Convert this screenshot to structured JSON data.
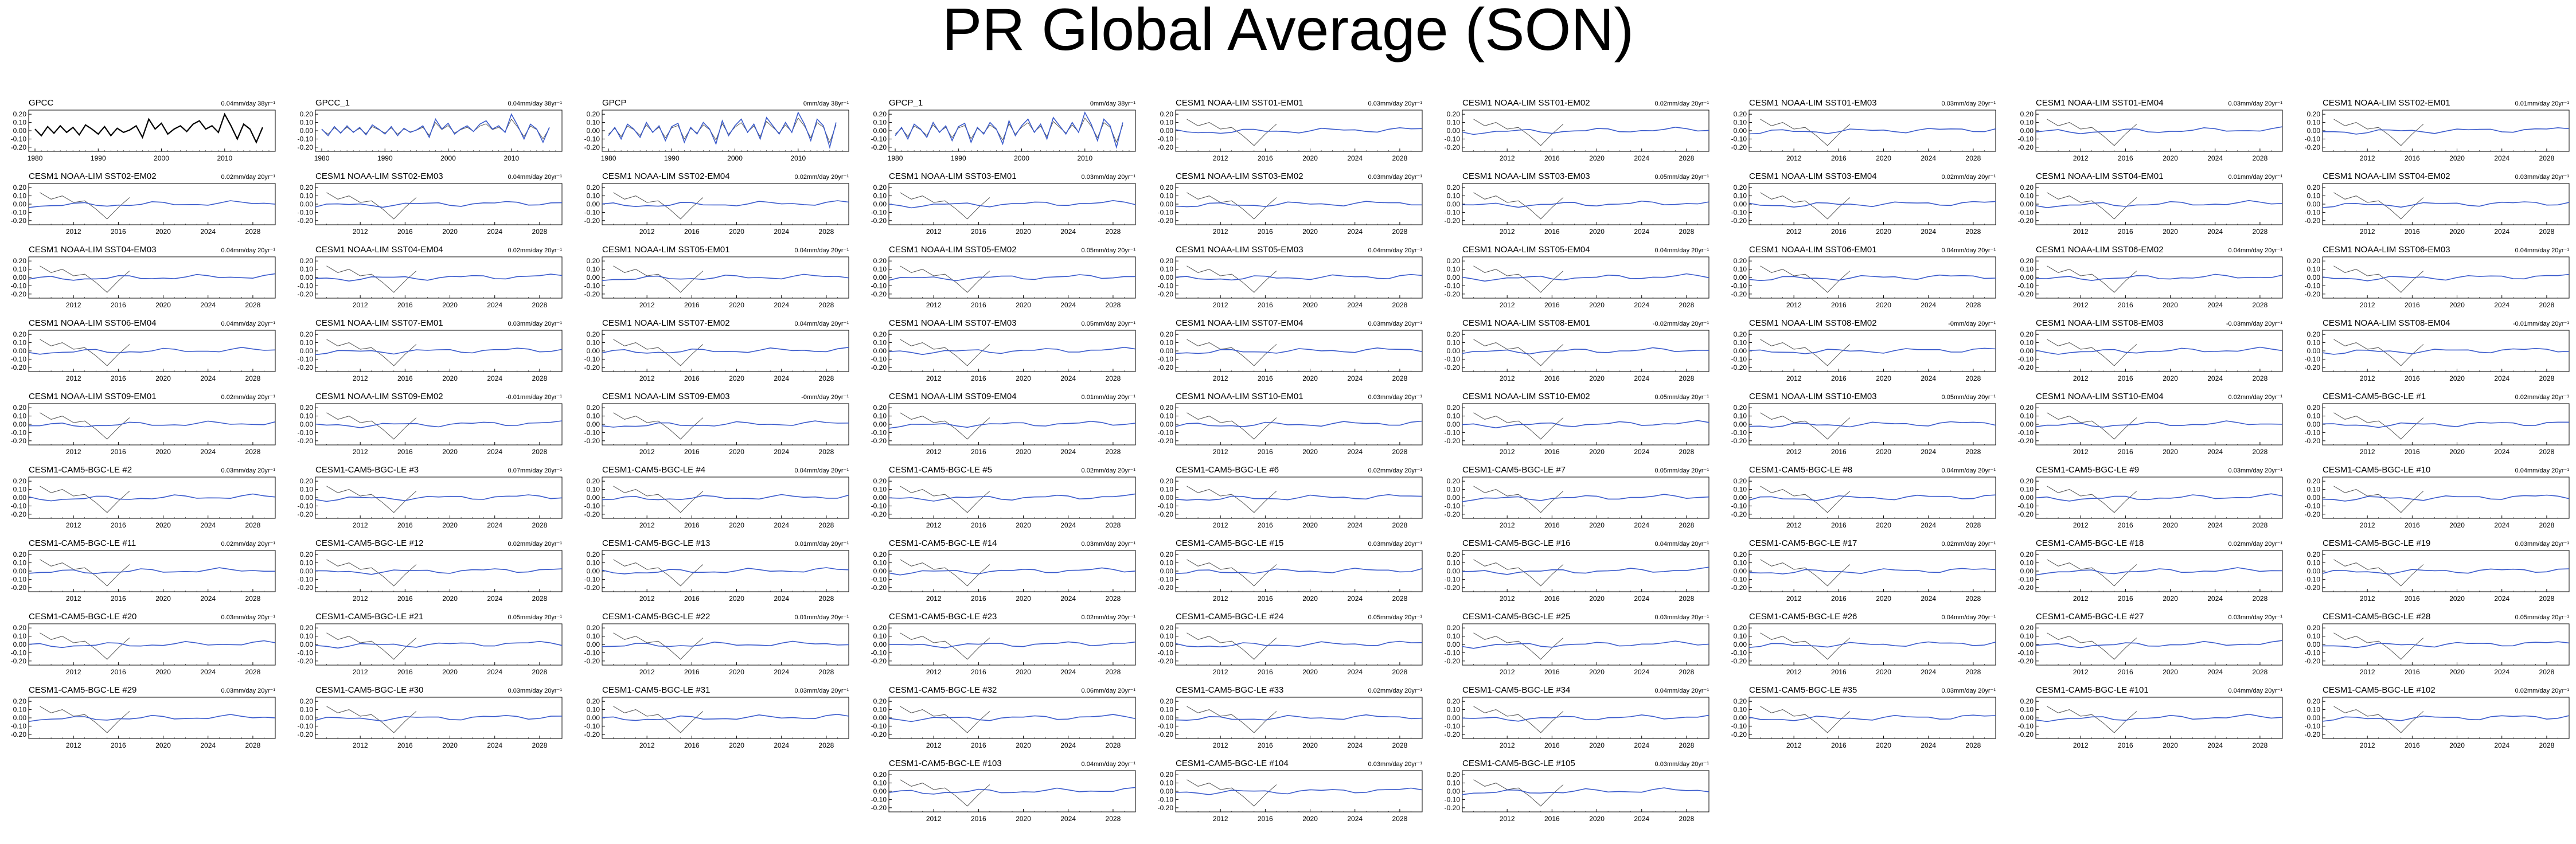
{
  "title": "PR Global Average (SON)",
  "chart_data": {
    "type": "line",
    "observed_color": "#000000",
    "model_color": "#3b5bcc",
    "obs_line_color": "#555555",
    "y_ticks": [
      "0.20",
      "0.10",
      "0.00",
      "-0.10",
      "-0.20"
    ],
    "y_tick_values": [
      0.2,
      0.1,
      0.0,
      -0.1,
      -0.2
    ],
    "ylim": [
      -0.25,
      0.25
    ],
    "obs_axis": {
      "xlim": [
        1979,
        2018
      ],
      "ticks": [
        1980,
        1990,
        2000,
        2010
      ]
    },
    "model_axis": {
      "xlim": [
        2008,
        2030
      ],
      "ticks": [
        2012,
        2016,
        2020,
        2024,
        2028
      ]
    },
    "observed_series": {
      "x": [
        1980,
        1981,
        1982,
        1983,
        1984,
        1985,
        1986,
        1987,
        1988,
        1989,
        1990,
        1991,
        1992,
        1993,
        1994,
        1995,
        1996,
        1997,
        1998,
        1999,
        2000,
        2001,
        2002,
        2003,
        2004,
        2005,
        2006,
        2007,
        2008,
        2009,
        2010,
        2011,
        2012,
        2013,
        2014,
        2015,
        2016
      ],
      "gpcc": [
        0.02,
        -0.06,
        0.05,
        -0.03,
        0.06,
        -0.02,
        0.04,
        -0.05,
        0.07,
        0.02,
        -0.04,
        0.05,
        -0.06,
        0.03,
        -0.02,
        0.01,
        0.06,
        -0.08,
        0.14,
        0.02,
        0.09,
        -0.04,
        0.02,
        0.06,
        -0.01,
        0.08,
        0.12,
        0.02,
        0.06,
        -0.02,
        0.2,
        0.06,
        -0.1,
        0.08,
        0.02,
        -0.14,
        0.04
      ],
      "gpcp": [
        -0.06,
        0.04,
        -0.1,
        0.08,
        0.02,
        -0.08,
        0.1,
        -0.02,
        0.06,
        -0.12,
        0.05,
        0.09,
        -0.14,
        0.04,
        -0.04,
        0.1,
        0.02,
        -0.16,
        0.12,
        -0.06,
        0.06,
        0.14,
        -0.02,
        0.08,
        -0.1,
        0.16,
        0.06,
        -0.04,
        0.1,
        -0.02,
        0.22,
        0.08,
        -0.12,
        0.14,
        0.06,
        -0.2,
        0.1
      ]
    },
    "panels": [
      {
        "label": "GPCC",
        "trend": "0.04mm/day 38yr⁻¹",
        "kind": "obs",
        "series": "gpcc"
      },
      {
        "label": "GPCC_1",
        "trend": "0.04mm/day 38yr⁻¹",
        "kind": "obs",
        "series": "gpcc"
      },
      {
        "label": "GPCP",
        "trend": "0mm/day 38yr⁻¹",
        "kind": "obs",
        "series": "gpcp"
      },
      {
        "label": "GPCP_1",
        "trend": "0mm/day 38yr⁻¹",
        "kind": "obs",
        "series": "gpcp"
      },
      {
        "label": "CESM1 NOAA-LIM SST01-EM01",
        "trend": "0.03mm/day 20yr⁻¹",
        "kind": "model",
        "seed": 1
      },
      {
        "label": "CESM1 NOAA-LIM SST01-EM02",
        "trend": "0.02mm/day 20yr⁻¹",
        "kind": "model",
        "seed": 2
      },
      {
        "label": "CESM1 NOAA-LIM SST01-EM03",
        "trend": "0.03mm/day 20yr⁻¹",
        "kind": "model",
        "seed": 3
      },
      {
        "label": "CESM1 NOAA-LIM SST01-EM04",
        "trend": "0.03mm/day 20yr⁻¹",
        "kind": "model",
        "seed": 4
      },
      {
        "label": "CESM1 NOAA-LIM SST02-EM01",
        "trend": "0.01mm/day 20yr⁻¹",
        "kind": "model",
        "seed": 5
      },
      {
        "label": "CESM1 NOAA-LIM SST02-EM02",
        "trend": "0.02mm/day 20yr⁻¹",
        "kind": "model",
        "seed": 6
      },
      {
        "label": "CESM1 NOAA-LIM SST02-EM03",
        "trend": "0.04mm/day 20yr⁻¹",
        "kind": "model",
        "seed": 7
      },
      {
        "label": "CESM1 NOAA-LIM SST02-EM04",
        "trend": "0.02mm/day 20yr⁻¹",
        "kind": "model",
        "seed": 8
      },
      {
        "label": "CESM1 NOAA-LIM SST03-EM01",
        "trend": "0.03mm/day 20yr⁻¹",
        "kind": "model",
        "seed": 9
      },
      {
        "label": "CESM1 NOAA-LIM SST03-EM02",
        "trend": "0.03mm/day 20yr⁻¹",
        "kind": "model",
        "seed": 10
      },
      {
        "label": "CESM1 NOAA-LIM SST03-EM03",
        "trend": "0.05mm/day 20yr⁻¹",
        "kind": "model",
        "seed": 11
      },
      {
        "label": "CESM1 NOAA-LIM SST03-EM04",
        "trend": "0.02mm/day 20yr⁻¹",
        "kind": "model",
        "seed": 12
      },
      {
        "label": "CESM1 NOAA-LIM SST04-EM01",
        "trend": "0.01mm/day 20yr⁻¹",
        "kind": "model",
        "seed": 13
      },
      {
        "label": "CESM1 NOAA-LIM SST04-EM02",
        "trend": "0.03mm/day 20yr⁻¹",
        "kind": "model",
        "seed": 14
      },
      {
        "label": "CESM1 NOAA-LIM SST04-EM03",
        "trend": "0.04mm/day 20yr⁻¹",
        "kind": "model",
        "seed": 15
      },
      {
        "label": "CESM1 NOAA-LIM SST04-EM04",
        "trend": "0.02mm/day 20yr⁻¹",
        "kind": "model",
        "seed": 16
      },
      {
        "label": "CESM1 NOAA-LIM SST05-EM01",
        "trend": "0.04mm/day 20yr⁻¹",
        "kind": "model",
        "seed": 17
      },
      {
        "label": "CESM1 NOAA-LIM SST05-EM02",
        "trend": "0.05mm/day 20yr⁻¹",
        "kind": "model",
        "seed": 18
      },
      {
        "label": "CESM1 NOAA-LIM SST05-EM03",
        "trend": "0.04mm/day 20yr⁻¹",
        "kind": "model",
        "seed": 19
      },
      {
        "label": "CESM1 NOAA-LIM SST05-EM04",
        "trend": "0.04mm/day 20yr⁻¹",
        "kind": "model",
        "seed": 20
      },
      {
        "label": "CESM1 NOAA-LIM SST06-EM01",
        "trend": "0.04mm/day 20yr⁻¹",
        "kind": "model",
        "seed": 21
      },
      {
        "label": "CESM1 NOAA-LIM SST06-EM02",
        "trend": "0.04mm/day 20yr⁻¹",
        "kind": "model",
        "seed": 22
      },
      {
        "label": "CESM1 NOAA-LIM SST06-EM03",
        "trend": "0.04mm/day 20yr⁻¹",
        "kind": "model",
        "seed": 23
      },
      {
        "label": "CESM1 NOAA-LIM SST06-EM04",
        "trend": "0.04mm/day 20yr⁻¹",
        "kind": "model",
        "seed": 24
      },
      {
        "label": "CESM1 NOAA-LIM SST07-EM01",
        "trend": "0.03mm/day 20yr⁻¹",
        "kind": "model",
        "seed": 25
      },
      {
        "label": "CESM1 NOAA-LIM SST07-EM02",
        "trend": "0.04mm/day 20yr⁻¹",
        "kind": "model",
        "seed": 26
      },
      {
        "label": "CESM1 NOAA-LIM SST07-EM03",
        "trend": "0.05mm/day 20yr⁻¹",
        "kind": "model",
        "seed": 27
      },
      {
        "label": "CESM1 NOAA-LIM SST07-EM04",
        "trend": "0.03mm/day 20yr⁻¹",
        "kind": "model",
        "seed": 28
      },
      {
        "label": "CESM1 NOAA-LIM SST08-EM01",
        "trend": "-0.02mm/day 20yr⁻¹",
        "kind": "model",
        "seed": 29
      },
      {
        "label": "CESM1 NOAA-LIM SST08-EM02",
        "trend": "-0mm/day 20yr⁻¹",
        "kind": "model",
        "seed": 30
      },
      {
        "label": "CESM1 NOAA-LIM SST08-EM03",
        "trend": "-0.03mm/day 20yr⁻¹",
        "kind": "model",
        "seed": 31
      },
      {
        "label": "CESM1 NOAA-LIM SST08-EM04",
        "trend": "-0.01mm/day 20yr⁻¹",
        "kind": "model",
        "seed": 32
      },
      {
        "label": "CESM1 NOAA-LIM SST09-EM01",
        "trend": "0.02mm/day 20yr⁻¹",
        "kind": "model",
        "seed": 33
      },
      {
        "label": "CESM1 NOAA-LIM SST09-EM02",
        "trend": "-0.01mm/day 20yr⁻¹",
        "kind": "model",
        "seed": 34
      },
      {
        "label": "CESM1 NOAA-LIM SST09-EM03",
        "trend": "-0mm/day 20yr⁻¹",
        "kind": "model",
        "seed": 35
      },
      {
        "label": "CESM1 NOAA-LIM SST09-EM04",
        "trend": "0.01mm/day 20yr⁻¹",
        "kind": "model",
        "seed": 36
      },
      {
        "label": "CESM1 NOAA-LIM SST10-EM01",
        "trend": "0.03mm/day 20yr⁻¹",
        "kind": "model",
        "seed": 37
      },
      {
        "label": "CESM1 NOAA-LIM SST10-EM02",
        "trend": "0.05mm/day 20yr⁻¹",
        "kind": "model",
        "seed": 38
      },
      {
        "label": "CESM1 NOAA-LIM SST10-EM03",
        "trend": "0.05mm/day 20yr⁻¹",
        "kind": "model",
        "seed": 39
      },
      {
        "label": "CESM1 NOAA-LIM SST10-EM04",
        "trend": "0.02mm/day 20yr⁻¹",
        "kind": "model",
        "seed": 40
      },
      {
        "label": "CESM1-CAM5-BGC-LE #1",
        "trend": "0.02mm/day 20yr⁻¹",
        "kind": "model",
        "seed": 41
      },
      {
        "label": "CESM1-CAM5-BGC-LE #2",
        "trend": "0.03mm/day 20yr⁻¹",
        "kind": "model",
        "seed": 42
      },
      {
        "label": "CESM1-CAM5-BGC-LE #3",
        "trend": "0.07mm/day 20yr⁻¹",
        "kind": "model",
        "seed": 43
      },
      {
        "label": "CESM1-CAM5-BGC-LE #4",
        "trend": "0.04mm/day 20yr⁻¹",
        "kind": "model",
        "seed": 44
      },
      {
        "label": "CESM1-CAM5-BGC-LE #5",
        "trend": "0.02mm/day 20yr⁻¹",
        "kind": "model",
        "seed": 45
      },
      {
        "label": "CESM1-CAM5-BGC-LE #6",
        "trend": "0.02mm/day 20yr⁻¹",
        "kind": "model",
        "seed": 46
      },
      {
        "label": "CESM1-CAM5-BGC-LE #7",
        "trend": "0.05mm/day 20yr⁻¹",
        "kind": "model",
        "seed": 47
      },
      {
        "label": "CESM1-CAM5-BGC-LE #8",
        "trend": "0.04mm/day 20yr⁻¹",
        "kind": "model",
        "seed": 48
      },
      {
        "label": "CESM1-CAM5-BGC-LE #9",
        "trend": "0.03mm/day 20yr⁻¹",
        "kind": "model",
        "seed": 49
      },
      {
        "label": "CESM1-CAM5-BGC-LE #10",
        "trend": "0.04mm/day 20yr⁻¹",
        "kind": "model",
        "seed": 50
      },
      {
        "label": "CESM1-CAM5-BGC-LE #11",
        "trend": "0.02mm/day 20yr⁻¹",
        "kind": "model",
        "seed": 51
      },
      {
        "label": "CESM1-CAM5-BGC-LE #12",
        "trend": "0.02mm/day 20yr⁻¹",
        "kind": "model",
        "seed": 52
      },
      {
        "label": "CESM1-CAM5-BGC-LE #13",
        "trend": "0.01mm/day 20yr⁻¹",
        "kind": "model",
        "seed": 53
      },
      {
        "label": "CESM1-CAM5-BGC-LE #14",
        "trend": "0.03mm/day 20yr⁻¹",
        "kind": "model",
        "seed": 54
      },
      {
        "label": "CESM1-CAM5-BGC-LE #15",
        "trend": "0.03mm/day 20yr⁻¹",
        "kind": "model",
        "seed": 55
      },
      {
        "label": "CESM1-CAM5-BGC-LE #16",
        "trend": "0.04mm/day 20yr⁻¹",
        "kind": "model",
        "seed": 56
      },
      {
        "label": "CESM1-CAM5-BGC-LE #17",
        "trend": "0.02mm/day 20yr⁻¹",
        "kind": "model",
        "seed": 57
      },
      {
        "label": "CESM1-CAM5-BGC-LE #18",
        "trend": "0.02mm/day 20yr⁻¹",
        "kind": "model",
        "seed": 58
      },
      {
        "label": "CESM1-CAM5-BGC-LE #19",
        "trend": "0.03mm/day 20yr⁻¹",
        "kind": "model",
        "seed": 59
      },
      {
        "label": "CESM1-CAM5-BGC-LE #20",
        "trend": "0.03mm/day 20yr⁻¹",
        "kind": "model",
        "seed": 60
      },
      {
        "label": "CESM1-CAM5-BGC-LE #21",
        "trend": "0.05mm/day 20yr⁻¹",
        "kind": "model",
        "seed": 61
      },
      {
        "label": "CESM1-CAM5-BGC-LE #22",
        "trend": "0.01mm/day 20yr⁻¹",
        "kind": "model",
        "seed": 62
      },
      {
        "label": "CESM1-CAM5-BGC-LE #23",
        "trend": "0.02mm/day 20yr⁻¹",
        "kind": "model",
        "seed": 63
      },
      {
        "label": "CESM1-CAM5-BGC-LE #24",
        "trend": "0.05mm/day 20yr⁻¹",
        "kind": "model",
        "seed": 64
      },
      {
        "label": "CESM1-CAM5-BGC-LE #25",
        "trend": "0.03mm/day 20yr⁻¹",
        "kind": "model",
        "seed": 65
      },
      {
        "label": "CESM1-CAM5-BGC-LE #26",
        "trend": "0.04mm/day 20yr⁻¹",
        "kind": "model",
        "seed": 66
      },
      {
        "label": "CESM1-CAM5-BGC-LE #27",
        "trend": "0.03mm/day 20yr⁻¹",
        "kind": "model",
        "seed": 67
      },
      {
        "label": "CESM1-CAM5-BGC-LE #28",
        "trend": "0.05mm/day 20yr⁻¹",
        "kind": "model",
        "seed": 68
      },
      {
        "label": "CESM1-CAM5-BGC-LE #29",
        "trend": "0.03mm/day 20yr⁻¹",
        "kind": "model",
        "seed": 69
      },
      {
        "label": "CESM1-CAM5-BGC-LE #30",
        "trend": "0.03mm/day 20yr⁻¹",
        "kind": "model",
        "seed": 70
      },
      {
        "label": "CESM1-CAM5-BGC-LE #31",
        "trend": "0.03mm/day 20yr⁻¹",
        "kind": "model",
        "seed": 71
      },
      {
        "label": "CESM1-CAM5-BGC-LE #32",
        "trend": "0.06mm/day 20yr⁻¹",
        "kind": "model",
        "seed": 72
      },
      {
        "label": "CESM1-CAM5-BGC-LE #33",
        "trend": "0.02mm/day 20yr⁻¹",
        "kind": "model",
        "seed": 73
      },
      {
        "label": "CESM1-CAM5-BGC-LE #34",
        "trend": "0.04mm/day 20yr⁻¹",
        "kind": "model",
        "seed": 74
      },
      {
        "label": "CESM1-CAM5-BGC-LE #35",
        "trend": "0.03mm/day 20yr⁻¹",
        "kind": "model",
        "seed": 75
      },
      {
        "label": "CESM1-CAM5-BGC-LE #101",
        "trend": "0.04mm/day 20yr⁻¹",
        "kind": "model",
        "seed": 76
      },
      {
        "label": "CESM1-CAM5-BGC-LE #102",
        "trend": "0.02mm/day 20yr⁻¹",
        "kind": "model",
        "seed": 77
      },
      {
        "label": "CESM1-CAM5-BGC-LE #103",
        "trend": "0.04mm/day 20yr⁻¹",
        "kind": "model",
        "seed": 78
      },
      {
        "label": "CESM1-CAM5-BGC-LE #104",
        "trend": "0.03mm/day 20yr⁻¹",
        "kind": "model",
        "seed": 79
      },
      {
        "label": "CESM1-CAM5-BGC-LE #105",
        "trend": "0.03mm/day 20yr⁻¹",
        "kind": "model",
        "seed": 80
      }
    ]
  }
}
